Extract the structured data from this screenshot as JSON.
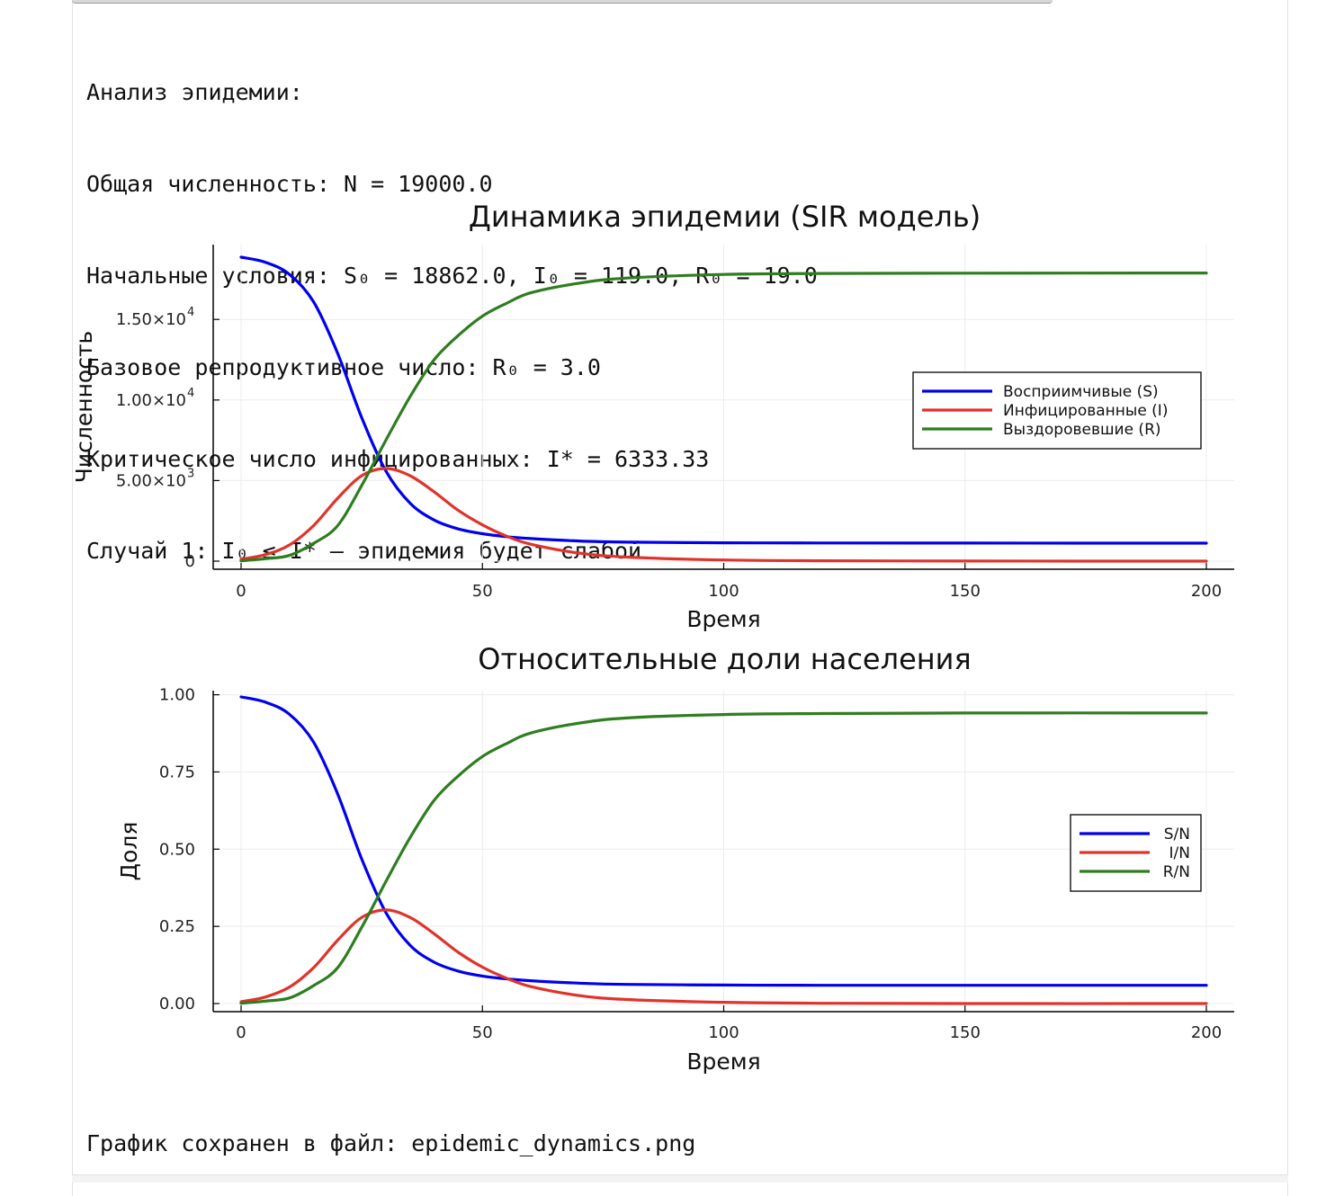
{
  "console": {
    "lines": [
      "Анализ эпидемии:",
      "Общая численность: N = 19000.0",
      "Начальные условия: S₀ = 18862.0, I₀ = 119.0, R₀ = 19.0",
      "Базовое репродуктивное число: R₀ = 3.0",
      "Критическое число инфицированных: I* = 6333.33",
      "Случай 1: I₀ ≤ I* – эпидемия будет слабой"
    ],
    "saved_message": "График сохранен в файл: epidemic_dynamics.png"
  },
  "colors": {
    "S": "#0000ee",
    "I": "#e0332a",
    "R": "#2e7d1f"
  },
  "chart_data": [
    {
      "type": "line",
      "title": "Динамика эпидемии (SIR модель)",
      "xlabel": "Время",
      "ylabel": "Численность",
      "xlim": [
        0,
        200
      ],
      "ylim": [
        0,
        19000
      ],
      "xticks": [
        0,
        50,
        100,
        150,
        200
      ],
      "xtick_labels": [
        "0",
        "50",
        "100",
        "150",
        "200"
      ],
      "yticks": [
        0,
        5000,
        10000,
        15000
      ],
      "ytick_labels": [
        {
          "text": "0",
          "mant": "",
          "exp": ""
        },
        {
          "text": "",
          "mant": "5.00×10",
          "exp": "3"
        },
        {
          "text": "",
          "mant": "1.00×10",
          "exp": "4"
        },
        {
          "text": "",
          "mant": "1.50×10",
          "exp": "4"
        }
      ],
      "grid": true,
      "legend": "right",
      "x": [
        0,
        5,
        10,
        15,
        20,
        25,
        30,
        35,
        40,
        45,
        50,
        55,
        60,
        70,
        80,
        100,
        120,
        150,
        200
      ],
      "series": [
        {
          "name": "Восприимчивые (S)",
          "color_key": "S",
          "values": [
            18862,
            18550,
            17800,
            16100,
            12900,
            8900,
            5600,
            3600,
            2550,
            2000,
            1700,
            1520,
            1400,
            1250,
            1180,
            1140,
            1125,
            1120,
            1118
          ]
        },
        {
          "name": "Инфицированные (I)",
          "color_key": "I",
          "values": [
            119,
            400,
            1000,
            2200,
            3900,
            5300,
            5750,
            5300,
            4300,
            3150,
            2250,
            1550,
            1050,
            500,
            250,
            70,
            20,
            5,
            1
          ]
        },
        {
          "name": "Выздоровевшие (R)",
          "color_key": "R",
          "values": [
            19,
            150,
            350,
            1100,
            2200,
            4700,
            7500,
            10200,
            12500,
            14000,
            15200,
            16000,
            16650,
            17250,
            17570,
            17790,
            17850,
            17870,
            17880
          ]
        }
      ]
    },
    {
      "type": "line",
      "title": "Относительные доли населения",
      "xlabel": "Время",
      "ylabel": "Доля",
      "xlim": [
        0,
        200
      ],
      "ylim": [
        0,
        1
      ],
      "xticks": [
        0,
        50,
        100,
        150,
        200
      ],
      "xtick_labels": [
        "0",
        "50",
        "100",
        "150",
        "200"
      ],
      "yticks": [
        0,
        0.25,
        0.5,
        0.75,
        1
      ],
      "ytick_labels": [
        {
          "text": "0.00",
          "mant": "",
          "exp": ""
        },
        {
          "text": "0.25",
          "mant": "",
          "exp": ""
        },
        {
          "text": "0.50",
          "mant": "",
          "exp": ""
        },
        {
          "text": "0.75",
          "mant": "",
          "exp": ""
        },
        {
          "text": "1.00",
          "mant": "",
          "exp": ""
        }
      ],
      "grid": true,
      "legend": "right",
      "x": [
        0,
        5,
        10,
        15,
        20,
        25,
        30,
        35,
        40,
        45,
        50,
        55,
        60,
        70,
        80,
        100,
        120,
        150,
        200
      ],
      "series": [
        {
          "name": "S/N",
          "color_key": "S",
          "values": [
            0.993,
            0.976,
            0.937,
            0.847,
            0.679,
            0.468,
            0.295,
            0.189,
            0.134,
            0.105,
            0.089,
            0.08,
            0.074,
            0.066,
            0.062,
            0.06,
            0.059,
            0.059,
            0.059
          ]
        },
        {
          "name": "I/N",
          "color_key": "I",
          "values": [
            0.006,
            0.021,
            0.053,
            0.116,
            0.205,
            0.279,
            0.303,
            0.279,
            0.226,
            0.166,
            0.118,
            0.082,
            0.055,
            0.026,
            0.013,
            0.004,
            0.001,
            0.0,
            0.0
          ]
        },
        {
          "name": "R/N",
          "color_key": "R",
          "values": [
            0.001,
            0.008,
            0.018,
            0.058,
            0.116,
            0.247,
            0.395,
            0.537,
            0.658,
            0.737,
            0.8,
            0.842,
            0.876,
            0.908,
            0.925,
            0.936,
            0.939,
            0.941,
            0.941
          ]
        }
      ]
    }
  ]
}
